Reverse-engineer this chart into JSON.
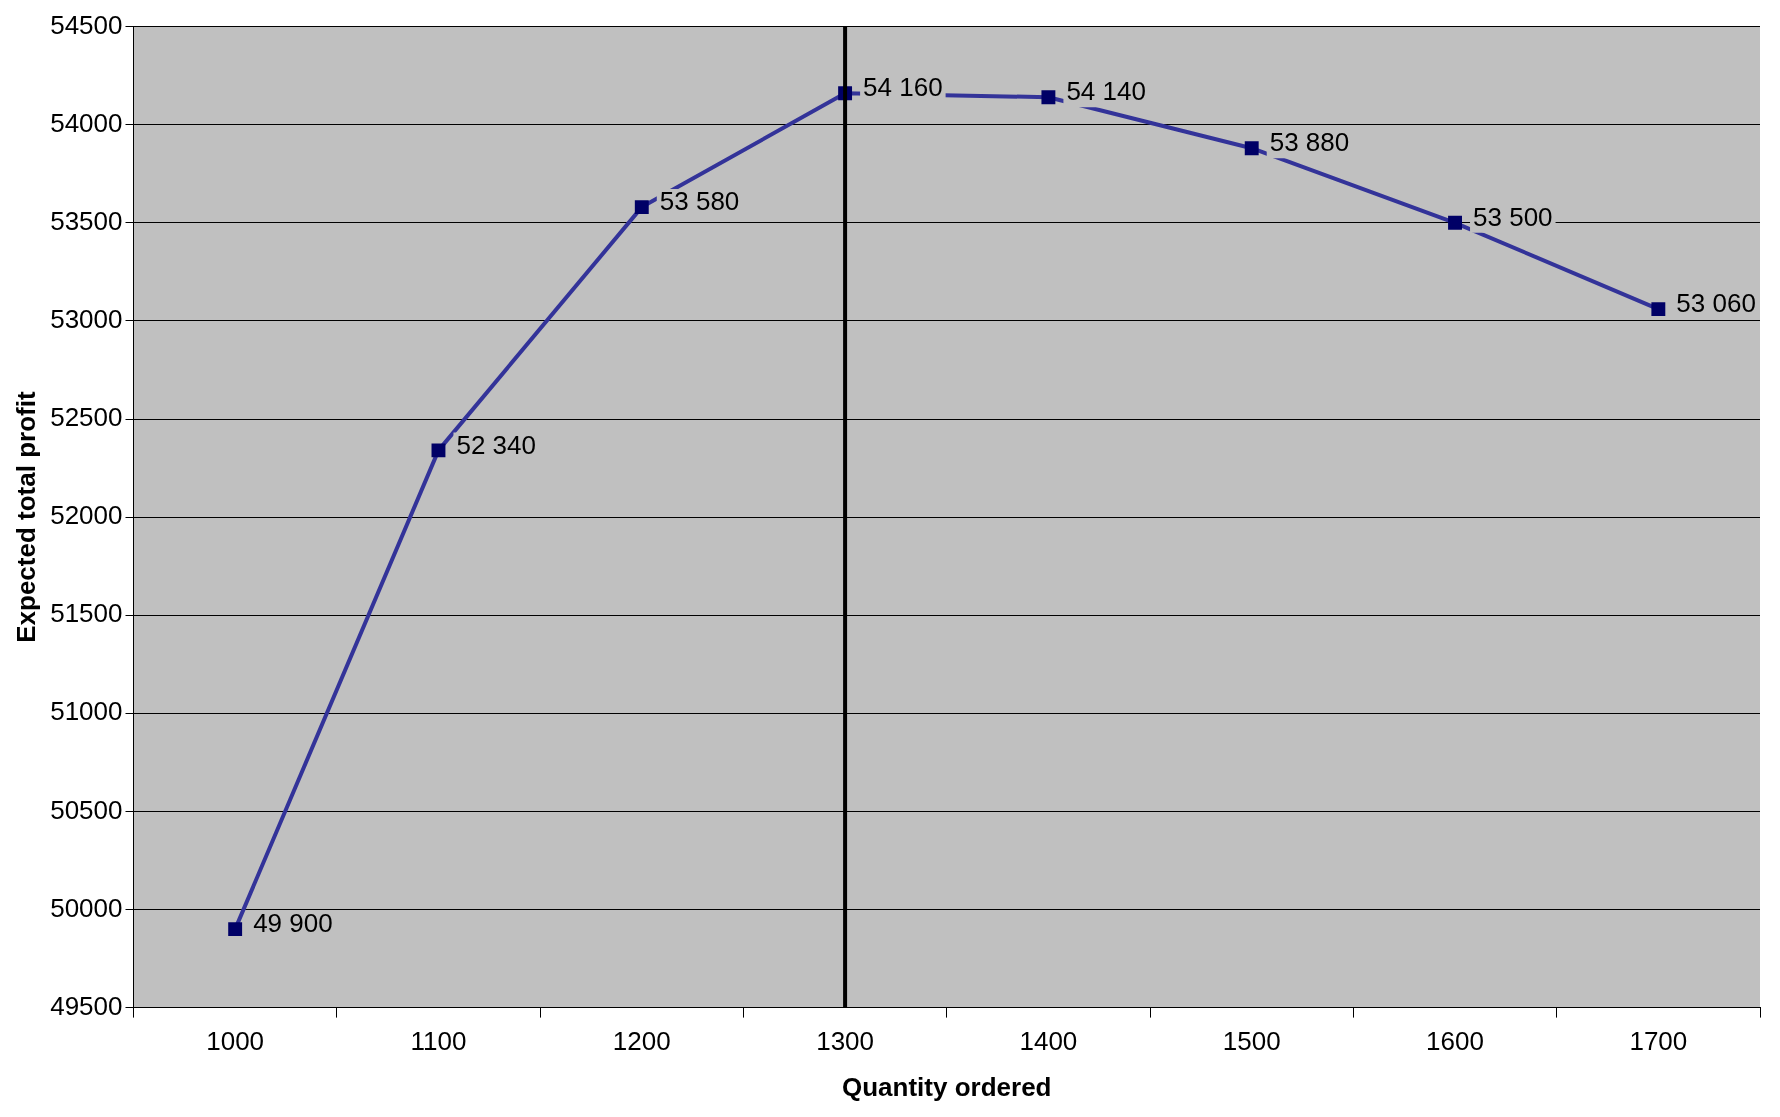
{
  "chart_data": {
    "type": "line",
    "xlabel": "Quantity ordered",
    "ylabel": "Expected total profit",
    "categories": [
      "1000",
      "1100",
      "1200",
      "1300",
      "1400",
      "1500",
      "1600",
      "1700"
    ],
    "series": [
      {
        "color": "#333399",
        "values": [
          49900,
          52340,
          53580,
          54160,
          54140,
          53880,
          53500,
          53060
        ],
        "value_labels": [
          "49 900",
          "52 340",
          "53 580",
          "54 160",
          "54 140",
          "53 880",
          "53 500",
          "53 060"
        ]
      }
    ],
    "ylim": [
      49500,
      54500
    ],
    "yticks": [
      49500,
      50000,
      50500,
      51000,
      51500,
      52000,
      52500,
      53000,
      53500,
      54000,
      54500
    ],
    "grid": "y",
    "legend": false,
    "marker": "square",
    "line_style": "solid",
    "ref_lines": [
      {
        "axis": "x",
        "value": "1300",
        "color": "#000000"
      }
    ]
  }
}
